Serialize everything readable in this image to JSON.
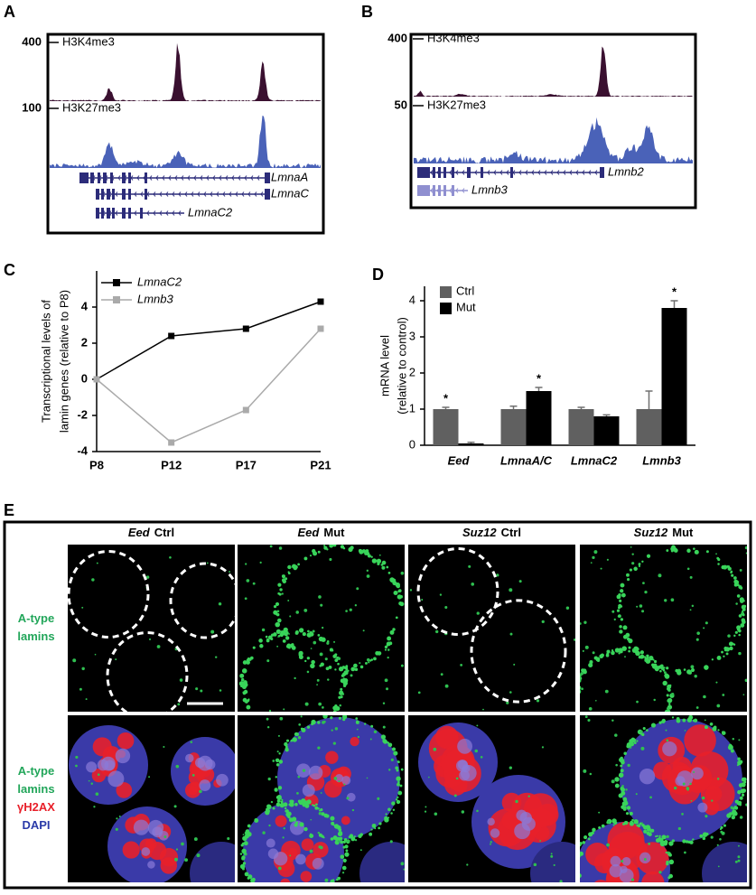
{
  "panel_labels": [
    "A",
    "B",
    "C",
    "D",
    "E"
  ],
  "genome_tracks": [
    {
      "tracks": [
        {
          "scale": "400",
          "name": "H3K4me3"
        },
        {
          "scale": "100",
          "name": "H3K27me3"
        }
      ],
      "genes": [
        "LmnaA",
        "LmnaC",
        "LmnaC2"
      ]
    },
    {
      "tracks": [
        {
          "scale": "400",
          "name": "H3K4me3"
        },
        {
          "scale": "50",
          "name": "H3K27me3"
        }
      ],
      "genes": [
        "Lmnb2",
        "Lmnb3"
      ]
    }
  ],
  "chart_data": [
    {
      "type": "line",
      "ylabel": [
        "Transcriptional levels of",
        "lamin genes (relative to P8)"
      ],
      "categories": [
        "P8",
        "P12",
        "P17",
        "P21"
      ],
      "series": [
        {
          "name": "LmnaC2",
          "color": "#000000",
          "values": [
            0,
            2.4,
            2.8,
            4.3
          ]
        },
        {
          "name": "Lmnb3",
          "color": "#aaaaaa",
          "values": [
            0,
            -3.5,
            -1.7,
            2.8
          ]
        }
      ],
      "ylim": [
        -4,
        6
      ],
      "yticks": [
        -4,
        -2,
        0,
        2,
        4
      ]
    },
    {
      "type": "bar",
      "ylabel": [
        "mRNA level",
        "(relative to control)"
      ],
      "categories": [
        "Eed",
        "LmnaA/C",
        "LmnaC2",
        "Lmnb3"
      ],
      "series": [
        {
          "name": "Ctrl",
          "color": "#606060",
          "values": [
            1,
            1,
            1,
            1
          ],
          "errors": [
            0.05,
            0.08,
            0.05,
            0.5
          ],
          "annotations": [
            "*",
            null,
            null,
            null
          ]
        },
        {
          "name": "Mut",
          "color": "#000000",
          "values": [
            0.05,
            1.5,
            0.8,
            3.8
          ],
          "errors": [
            0.03,
            0.1,
            0.04,
            0.2
          ],
          "annotations": [
            null,
            "*",
            null,
            "*"
          ]
        }
      ],
      "ylim": [
        0,
        4.4
      ],
      "yticks": [
        0,
        1,
        2,
        3,
        4
      ]
    }
  ],
  "imaging": {
    "columns": [
      {
        "gene": "Eed",
        "condition": "Ctrl"
      },
      {
        "gene": "Eed",
        "condition": "Mut"
      },
      {
        "gene": "Suz12",
        "condition": "Ctrl"
      },
      {
        "gene": "Suz12",
        "condition": "Mut"
      }
    ],
    "rows": [
      [
        {
          "text": "A-type",
          "color": "#22a65a"
        },
        {
          "text": "lamins",
          "color": "#22a65a"
        }
      ],
      [
        {
          "text": "A-type",
          "color": "#22a65a"
        },
        {
          "text": "lamins",
          "color": "#22a65a"
        },
        {
          "text": "γH2AX",
          "color": "#e8202a"
        },
        {
          "text": "DAPI",
          "color": "#2a3aa8"
        }
      ]
    ]
  }
}
